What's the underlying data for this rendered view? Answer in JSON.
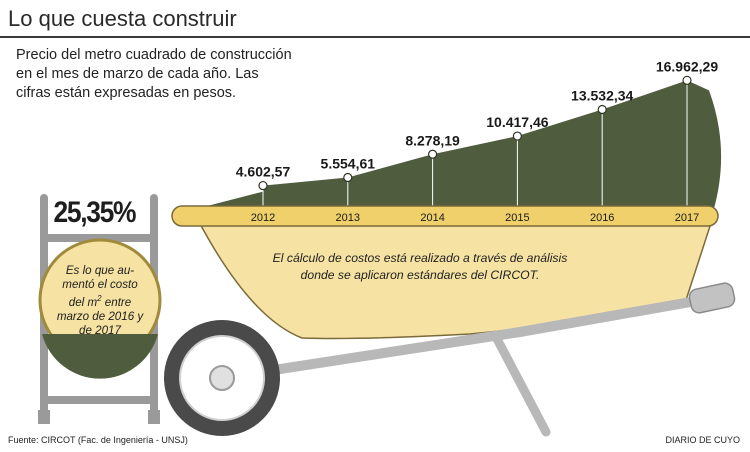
{
  "title": "Lo que cuesta construir",
  "subtitle_lines": [
    "Precio del metro cuadrado de construcción",
    "en el mes de marzo de cada año. Las",
    "cifras están expresadas en pesos."
  ],
  "highlight": {
    "value": "25,35%",
    "text_lines": [
      "Es lo que au-",
      "mentó el costo",
      "del m",
      "2",
      " entre",
      "marzo de 2016 y",
      "de 2017"
    ]
  },
  "body_lines": [
    "El cálculo de costos está realizado a través de análisis",
    "donde se aplicaron estándares del CIRCOT."
  ],
  "source": "Fuente: CIRCOT (Fac. de Ingeniería - UNSJ)",
  "credit": "DIARIO DE CUYO",
  "colors": {
    "area_fill": "#4f5d3e",
    "bucket_fill": "#f6e3a3",
    "tray_rim": "#f0d06a",
    "outline": "#7a6a3a",
    "frame": "#9a9a9a"
  },
  "chart_data": {
    "type": "area",
    "title": "Lo que cuesta construir",
    "xlabel": "",
    "ylabel": "",
    "categories": [
      "2012",
      "2013",
      "2014",
      "2015",
      "2016",
      "2017"
    ],
    "series": [
      {
        "values": [
          4602.57,
          5554.61,
          8278.19,
          10417.46,
          13532.34,
          16962.29
        ],
        "labels": [
          "4.602,57",
          "5.554,61",
          "8.278,19",
          "10.417,46",
          "13.532,34",
          "16.962,29"
        ]
      }
    ],
    "ylim": [
      0,
      17000
    ],
    "grid": false
  }
}
